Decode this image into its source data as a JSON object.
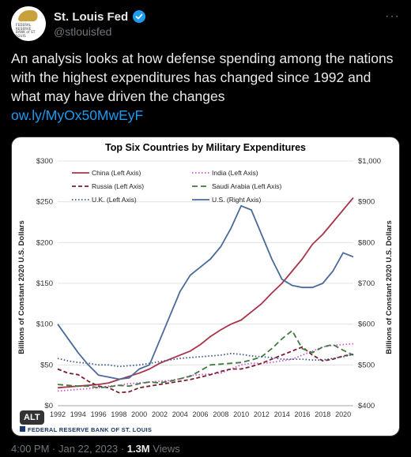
{
  "account": {
    "name": "St. Louis Fed",
    "handle": "@stlouisfed",
    "avatar_text": "FEDERAL RESERVE BANK of ST. LOUIS"
  },
  "tweet": {
    "text": "An analysis looks at how defense spending among the nations with the highest expenditures has changed since 1992 and what may have driven the changes",
    "link": "ow.ly/MyOx50MwEyF"
  },
  "media": {
    "alt_label": "ALT",
    "source": "FEDERAL RESERVE BANK OF ST. LOUIS"
  },
  "footer": {
    "time": "4:00 PM",
    "date": "Jan 22, 2023",
    "separator": " · ",
    "views_count": "1.3M",
    "views_label": "Views"
  },
  "colors": {
    "china": "#a8344a",
    "russia": "#7b1e2c",
    "uk": "#3e5a86",
    "india": "#d453d4",
    "saudi": "#3f7a3f",
    "us": "#4a6a9b",
    "link": "#1d9bf0"
  },
  "chart_data": {
    "type": "line",
    "title": "Top Six Countries by Military Expenditures",
    "ylabel_left": "Billions of Constant 2020 U.S. Dollars",
    "ylabel_right": "Billions of Constant 2020 U.S. Dollars",
    "ylim_left": [
      0,
      300
    ],
    "ylim_right": [
      400,
      1000
    ],
    "y_ticks_left": [
      "$0",
      "$50",
      "$100",
      "$150",
      "$200",
      "$250",
      "$300"
    ],
    "y_ticks_right": [
      "$400",
      "$500",
      "$600",
      "$700",
      "$800",
      "$900",
      "$1,000"
    ],
    "x_ticks": [
      "1992",
      "1994",
      "1996",
      "1998",
      "2000",
      "2002",
      "2004",
      "2006",
      "2008",
      "2010",
      "2012",
      "2014",
      "2016",
      "2018",
      "2020"
    ],
    "x": [
      1992,
      1993,
      1994,
      1995,
      1996,
      1997,
      1998,
      1999,
      2000,
      2001,
      2002,
      2003,
      2004,
      2005,
      2006,
      2007,
      2008,
      2009,
      2010,
      2011,
      2012,
      2013,
      2014,
      2015,
      2016,
      2017,
      2018,
      2019,
      2020,
      2021
    ],
    "legend_placement": "top-left",
    "series": [
      {
        "name": "China (Left Axis)",
        "axis": "left",
        "color_key": "china",
        "dash": "solid",
        "values": [
          22,
          23,
          24,
          25,
          26,
          28,
          32,
          36,
          40,
          45,
          52,
          57,
          62,
          67,
          75,
          85,
          93,
          100,
          105,
          115,
          125,
          138,
          150,
          165,
          180,
          198,
          210,
          225,
          240,
          255
        ]
      },
      {
        "name": "India (Left Axis)",
        "axis": "left",
        "color_key": "india",
        "dash": "dot",
        "values": [
          18,
          19,
          20,
          21,
          22,
          24,
          25,
          27,
          28,
          29,
          30,
          31,
          33,
          37,
          38,
          39,
          40,
          45,
          50,
          52,
          52,
          53,
          55,
          57,
          62,
          67,
          72,
          74,
          75,
          76
        ]
      },
      {
        "name": "Russia (Left Axis)",
        "axis": "left",
        "color_key": "russia",
        "dash": "dash",
        "values": [
          45,
          40,
          38,
          30,
          24,
          22,
          16,
          17,
          22,
          24,
          26,
          28,
          30,
          32,
          35,
          38,
          42,
          45,
          45,
          48,
          52,
          57,
          62,
          67,
          72,
          62,
          55,
          57,
          61,
          63
        ]
      },
      {
        "name": "Saudi Arabia (Left Axis)",
        "axis": "left",
        "color_key": "saudi",
        "dash": "longdash",
        "values": [
          26,
          25,
          24,
          24,
          22,
          23,
          25,
          24,
          27,
          29,
          28,
          30,
          33,
          36,
          43,
          50,
          51,
          52,
          53,
          56,
          60,
          70,
          82,
          92,
          70,
          65,
          72,
          75,
          68,
          62
        ]
      },
      {
        "name": "U.K. (Left Axis)",
        "axis": "left",
        "color_key": "uk",
        "dash": "dot",
        "values": [
          58,
          55,
          53,
          52,
          50,
          50,
          48,
          49,
          50,
          52,
          54,
          56,
          58,
          59,
          60,
          61,
          62,
          64,
          63,
          61,
          60,
          59,
          57,
          57,
          57,
          56,
          56,
          58,
          60,
          63
        ]
      },
      {
        "name": "U.S. (Right Axis)",
        "axis": "right",
        "color_key": "us",
        "dash": "solid",
        "values": [
          600,
          565,
          530,
          500,
          475,
          470,
          465,
          468,
          490,
          500,
          560,
          620,
          680,
          720,
          740,
          760,
          790,
          835,
          890,
          880,
          820,
          760,
          710,
          695,
          690,
          690,
          700,
          730,
          775,
          765
        ]
      }
    ]
  }
}
